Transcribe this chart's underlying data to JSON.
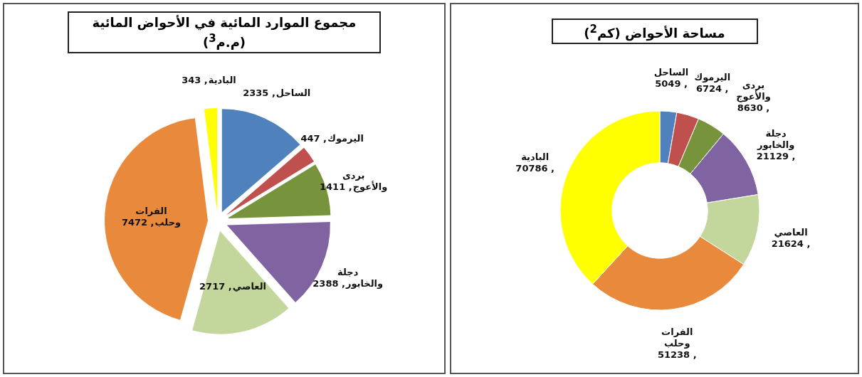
{
  "chart_data": [
    {
      "type": "pie",
      "title": "مجموع الموارد المائية في الأحواض المائية (م.م$^{3}$)",
      "categories": [
        "الساحل",
        "اليرموك",
        "بردى والأعوج",
        "دجلة والخابور",
        "العاصي",
        "الفرات وحلب",
        "البادية"
      ],
      "values": [
        2335,
        447,
        1411,
        2388,
        2717,
        7472,
        343
      ],
      "value_labels": [
        ", 2335",
        ", 447",
        ", 1411",
        ", 2388",
        ", 2717",
        ", 7472",
        ", 343"
      ],
      "colors": [
        "#4f81bd",
        "#c0504d",
        "#77933c",
        "#8064a2",
        "#c3d69b",
        "#e8893c",
        "#ffff00"
      ]
    },
    {
      "type": "donut",
      "title": "مساحة الأحواض (كم$^{2}$)",
      "categories": [
        "الساحل",
        "اليرموك",
        "بردى والأعوج",
        "دجلة والخابور",
        "العاصي",
        "الفرات وحلب",
        "البادية"
      ],
      "values": [
        5049,
        6724,
        8630,
        21129,
        21624,
        51238,
        70786
      ],
      "value_labels": [
        ", 5049",
        ", 6724",
        ", 8630",
        ", 21129",
        ", 21624",
        ", 51238",
        ", 70786"
      ],
      "colors": [
        "#4f81bd",
        "#c0504d",
        "#77933c",
        "#8064a2",
        "#c3d69b",
        "#e8893c",
        "#ffff00"
      ]
    }
  ]
}
